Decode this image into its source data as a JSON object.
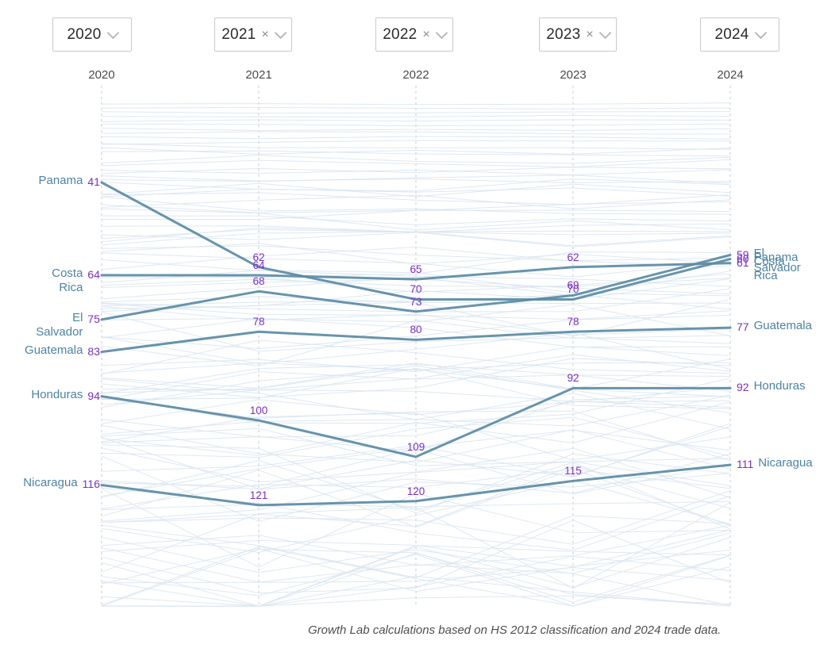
{
  "colors": {
    "highlight_line": "#5b8ba4",
    "background_line": "#d9e6ef",
    "country_label": "#4d83a1",
    "rank_number": "#7a2fbe",
    "axis_dash": "#c9c9c9",
    "axis_text": "#4a4a4a"
  },
  "year_selectors": [
    {
      "label": "2020",
      "removable": false
    },
    {
      "label": "2021",
      "removable": true
    },
    {
      "label": "2022",
      "removable": true
    },
    {
      "label": "2023",
      "removable": true
    },
    {
      "label": "2024",
      "removable": false
    }
  ],
  "footer": {
    "caption": "Growth Lab calculations based on HS 2012 classification and 2024 trade data."
  },
  "chart_data": {
    "type": "line",
    "subtype": "bump-chart-country-rankings",
    "x": [
      2020,
      2021,
      2022,
      2023,
      2024
    ],
    "series": [
      {
        "name": "Panama",
        "values": [
          41,
          62,
          70,
          70,
          60
        ],
        "wrap": false
      },
      {
        "name": "Costa Rica",
        "values": [
          64,
          64,
          65,
          62,
          61
        ],
        "wrap": true
      },
      {
        "name": "El Salvador",
        "values": [
          75,
          68,
          73,
          69,
          59
        ],
        "wrap": true
      },
      {
        "name": "Guatemala",
        "values": [
          83,
          78,
          80,
          78,
          77
        ],
        "wrap": false
      },
      {
        "name": "Honduras",
        "values": [
          94,
          100,
          109,
          92,
          92
        ],
        "wrap": false
      },
      {
        "name": "Nicaragua",
        "values": [
          116,
          121,
          120,
          115,
          111
        ],
        "wrap": false
      }
    ],
    "value_axis": "rank (lower is better, inverted: smaller rank is higher on screen)",
    "ylim": [
      21,
      146
    ],
    "grid": false,
    "legend": "inline-edge-labels",
    "background_series_count": 118
  }
}
